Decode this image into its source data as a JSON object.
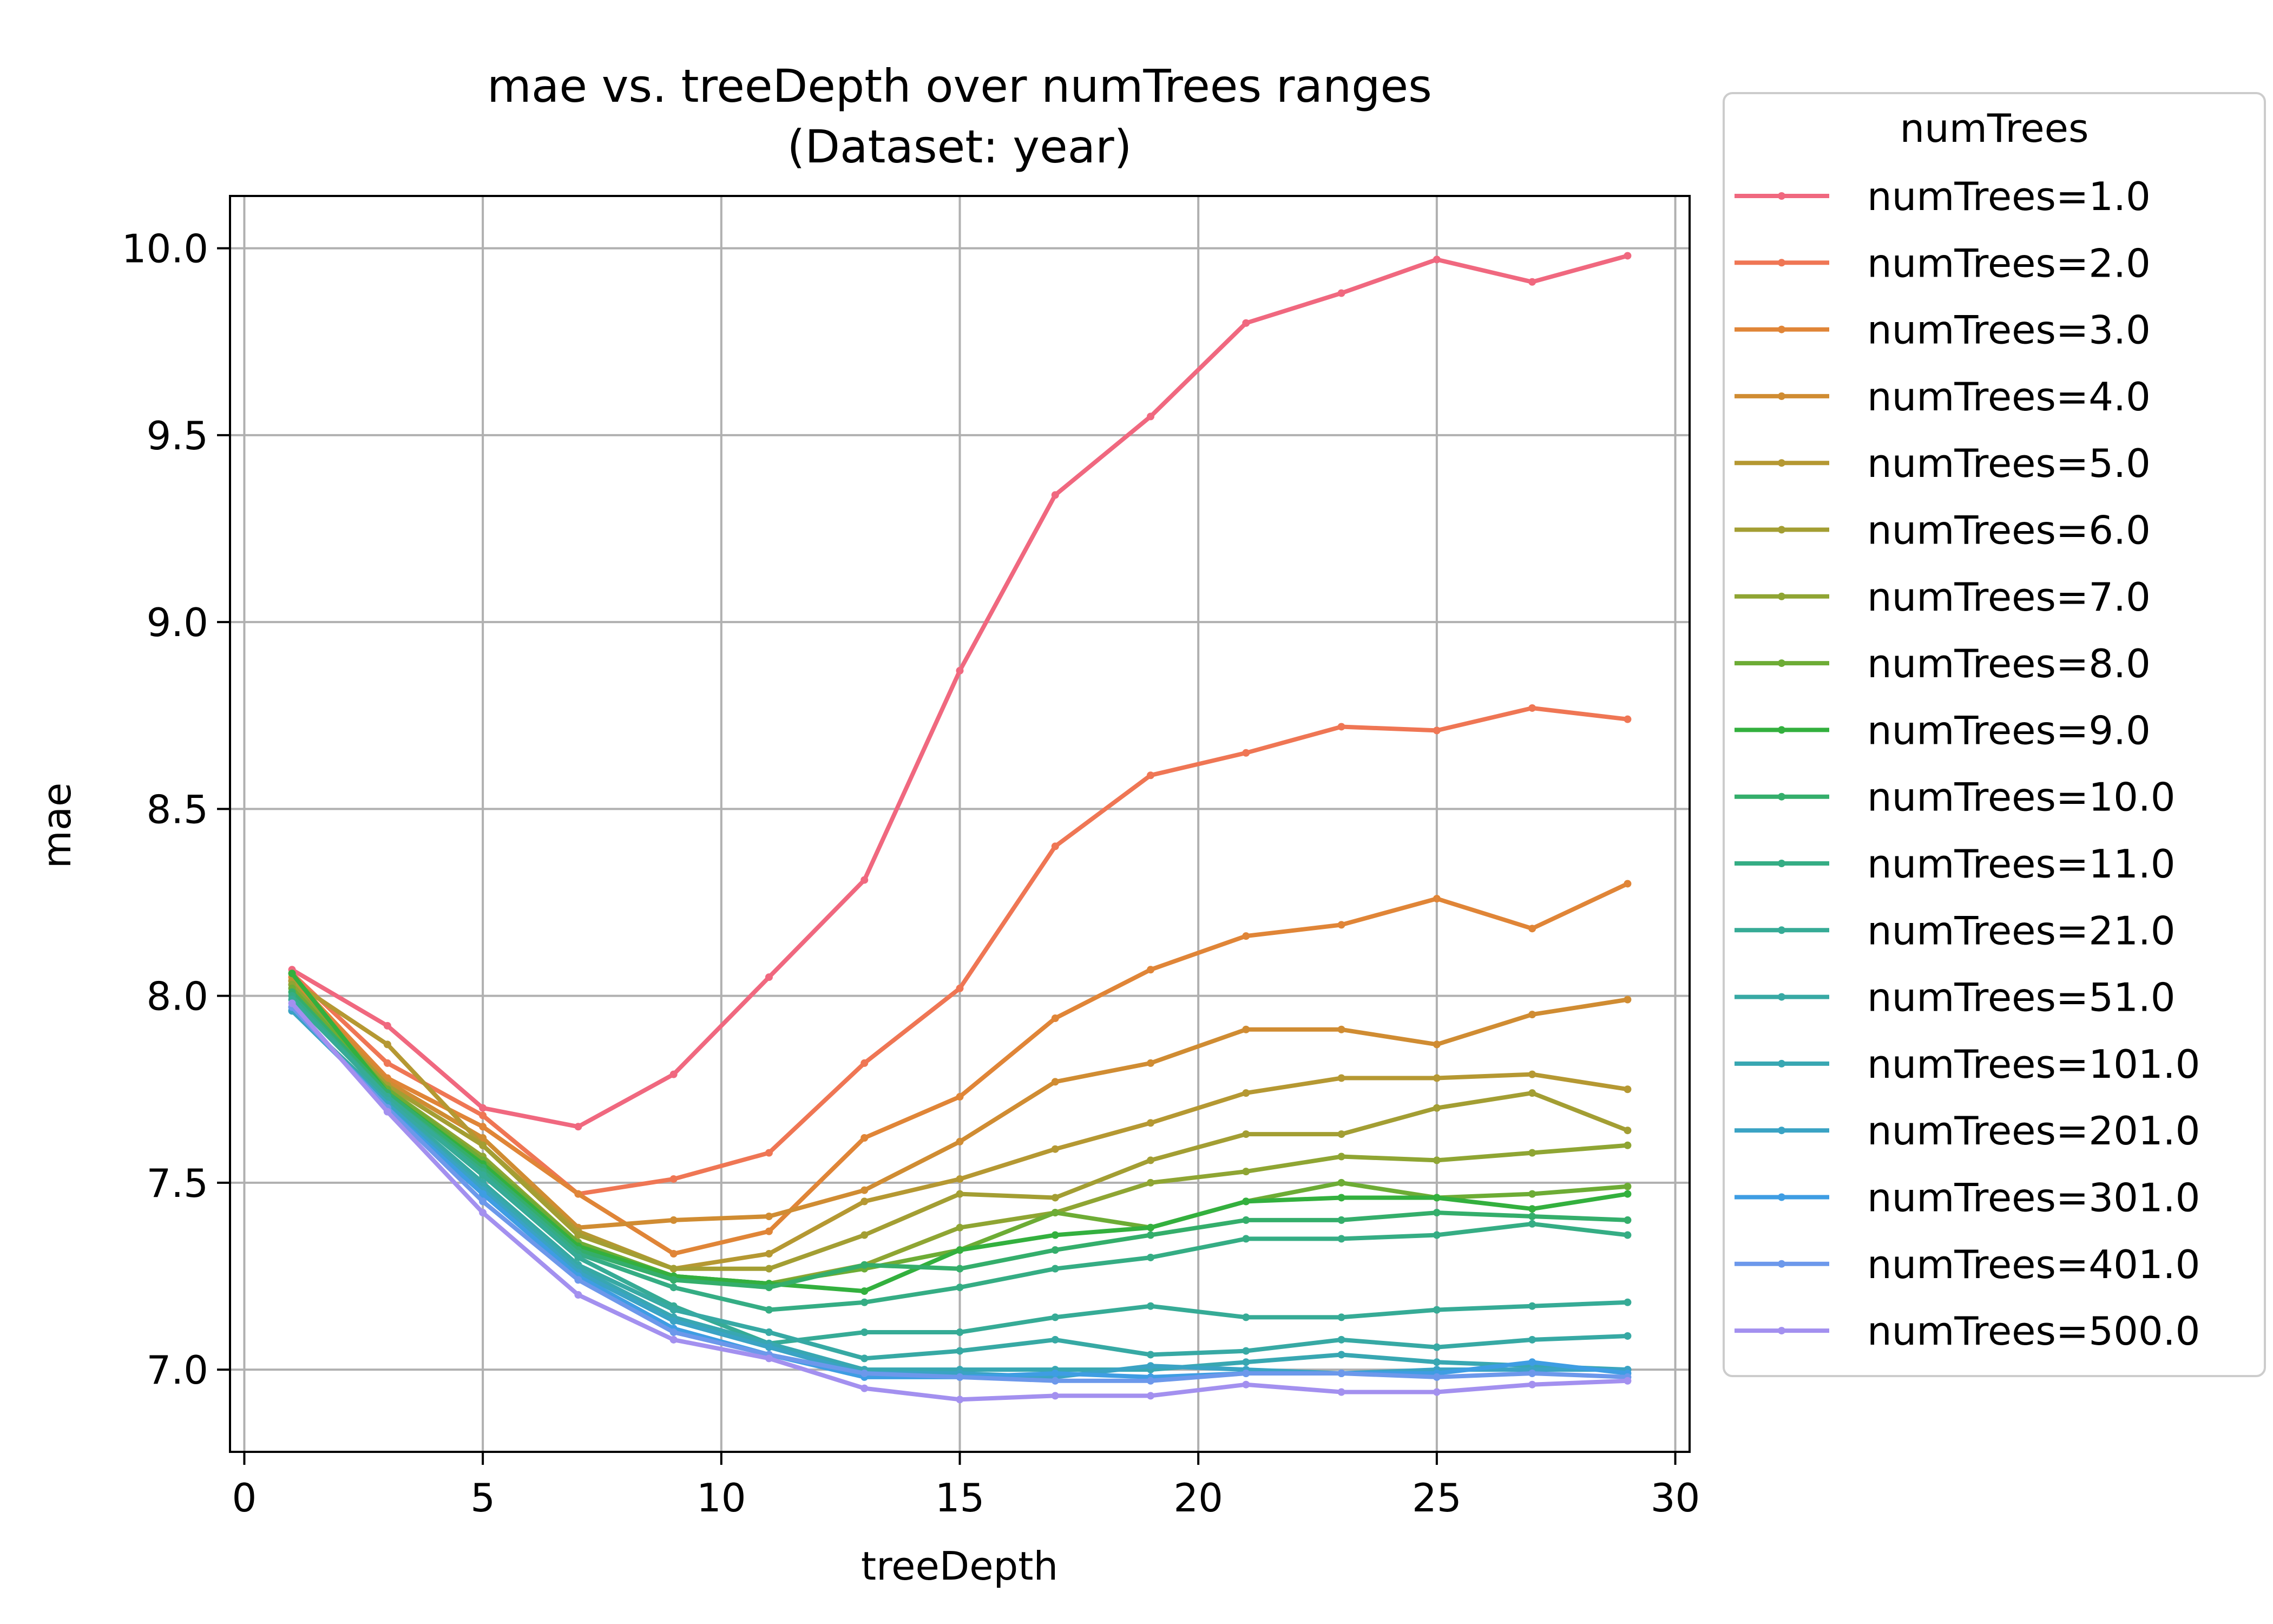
{
  "chart_data": {
    "type": "line",
    "title": "mae vs. treeDepth over numTrees ranges",
    "subtitle": "(Dataset: year)",
    "xlabel": "treeDepth",
    "ylabel": "mae",
    "xlim": [
      -0.3,
      30.3
    ],
    "ylim": [
      6.78,
      10.14
    ],
    "xticks": [
      0,
      5,
      10,
      15,
      20,
      25,
      30
    ],
    "yticks": [
      7.0,
      7.5,
      8.0,
      8.5,
      9.0,
      9.5,
      10.0
    ],
    "xtick_labels": [
      "0",
      "5",
      "10",
      "15",
      "20",
      "25",
      "30"
    ],
    "ytick_labels": [
      "7.0",
      "7.5",
      "8.0",
      "8.5",
      "9.0",
      "9.5",
      "10.0"
    ],
    "grid": true,
    "legend_title": "numTrees",
    "legend_position": "outside-right",
    "x": [
      1,
      3,
      5,
      7,
      9,
      11,
      13,
      15,
      17,
      19,
      21,
      23,
      25,
      27,
      29
    ],
    "series": [
      {
        "name": "numTrees=1.0",
        "color": "#f0687f",
        "values": [
          8.07,
          7.92,
          7.7,
          7.65,
          7.79,
          8.05,
          8.31,
          8.87,
          9.34,
          9.55,
          9.8,
          9.88,
          9.97,
          9.91,
          9.98
        ]
      },
      {
        "name": "numTrees=2.0",
        "color": "#ef7654",
        "values": [
          8.06,
          7.82,
          7.68,
          7.47,
          7.51,
          7.58,
          7.82,
          8.02,
          8.4,
          8.59,
          8.65,
          8.72,
          8.71,
          8.77,
          8.74
        ]
      },
      {
        "name": "numTrees=3.0",
        "color": "#e08537",
        "values": [
          8.05,
          7.78,
          7.65,
          7.47,
          7.31,
          7.37,
          7.62,
          7.73,
          7.94,
          8.07,
          8.16,
          8.19,
          8.26,
          8.18,
          8.3
        ]
      },
      {
        "name": "numTrees=4.0",
        "color": "#d08c32",
        "values": [
          8.04,
          7.77,
          7.62,
          7.38,
          7.4,
          7.41,
          7.48,
          7.61,
          7.77,
          7.82,
          7.91,
          7.91,
          7.87,
          7.95,
          7.99
        ]
      },
      {
        "name": "numTrees=5.0",
        "color": "#b59832",
        "values": [
          8.04,
          7.87,
          7.6,
          7.37,
          7.27,
          7.31,
          7.45,
          7.51,
          7.59,
          7.66,
          7.74,
          7.78,
          7.78,
          7.79,
          7.75
        ]
      },
      {
        "name": "numTrees=6.0",
        "color": "#a39e33",
        "values": [
          8.03,
          7.76,
          7.6,
          7.36,
          7.27,
          7.27,
          7.36,
          7.47,
          7.46,
          7.56,
          7.63,
          7.63,
          7.7,
          7.74,
          7.64
        ]
      },
      {
        "name": "numTrees=7.0",
        "color": "#8fa533",
        "values": [
          8.03,
          7.75,
          7.57,
          7.34,
          7.25,
          7.23,
          7.28,
          7.38,
          7.42,
          7.5,
          7.53,
          7.57,
          7.56,
          7.58,
          7.6
        ]
      },
      {
        "name": "numTrees=8.0",
        "color": "#6dac35",
        "values": [
          8.02,
          7.75,
          7.56,
          7.34,
          7.25,
          7.23,
          7.27,
          7.32,
          7.42,
          7.38,
          7.45,
          7.5,
          7.46,
          7.47,
          7.49
        ]
      },
      {
        "name": "numTrees=9.0",
        "color": "#33b03e",
        "values": [
          8.06,
          7.74,
          7.55,
          7.33,
          7.25,
          7.23,
          7.21,
          7.32,
          7.36,
          7.38,
          7.45,
          7.46,
          7.46,
          7.43,
          7.47
        ]
      },
      {
        "name": "numTrees=10.0",
        "color": "#34ae6b",
        "values": [
          8.01,
          7.74,
          7.54,
          7.32,
          7.24,
          7.22,
          7.28,
          7.27,
          7.32,
          7.36,
          7.4,
          7.4,
          7.42,
          7.41,
          7.4
        ]
      },
      {
        "name": "numTrees=11.0",
        "color": "#35ad84",
        "values": [
          8.0,
          7.73,
          7.53,
          7.31,
          7.22,
          7.16,
          7.18,
          7.22,
          7.27,
          7.3,
          7.35,
          7.35,
          7.36,
          7.39,
          7.36
        ]
      },
      {
        "name": "numTrees=21.0",
        "color": "#36ab96",
        "values": [
          7.99,
          7.73,
          7.52,
          7.3,
          7.17,
          7.07,
          7.1,
          7.1,
          7.14,
          7.17,
          7.14,
          7.14,
          7.16,
          7.17,
          7.18
        ]
      },
      {
        "name": "numTrees=51.0",
        "color": "#37a9a4",
        "values": [
          7.96,
          7.72,
          7.5,
          7.28,
          7.16,
          7.1,
          7.03,
          7.05,
          7.08,
          7.04,
          7.05,
          7.08,
          7.06,
          7.08,
          7.09
        ]
      },
      {
        "name": "numTrees=101.0",
        "color": "#38a7b2",
        "values": [
          7.96,
          7.71,
          7.49,
          7.27,
          7.14,
          7.07,
          7.0,
          7.0,
          7.0,
          7.0,
          7.02,
          7.04,
          7.02,
          7.01,
          7.0
        ]
      },
      {
        "name": "numTrees=201.0",
        "color": "#3aa3c4",
        "values": [
          7.96,
          7.71,
          7.48,
          7.26,
          7.13,
          7.06,
          6.99,
          6.99,
          6.98,
          7.01,
          7.0,
          6.99,
          7.0,
          7.0,
          7.0
        ]
      },
      {
        "name": "numTrees=301.0",
        "color": "#3e9de3",
        "values": [
          7.97,
          7.7,
          7.47,
          7.25,
          7.11,
          7.04,
          6.98,
          6.98,
          6.99,
          6.98,
          6.99,
          6.99,
          6.99,
          7.02,
          6.99
        ]
      },
      {
        "name": "numTrees=401.0",
        "color": "#6c98eb",
        "values": [
          7.97,
          7.7,
          7.45,
          7.24,
          7.1,
          7.04,
          6.99,
          6.98,
          6.97,
          6.97,
          6.99,
          6.99,
          6.98,
          6.99,
          6.98
        ]
      },
      {
        "name": "numTrees=500.0",
        "color": "#a390ef",
        "values": [
          7.98,
          7.69,
          7.42,
          7.2,
          7.08,
          7.03,
          6.95,
          6.92,
          6.93,
          6.93,
          6.96,
          6.94,
          6.94,
          6.96,
          6.97
        ]
      }
    ]
  }
}
